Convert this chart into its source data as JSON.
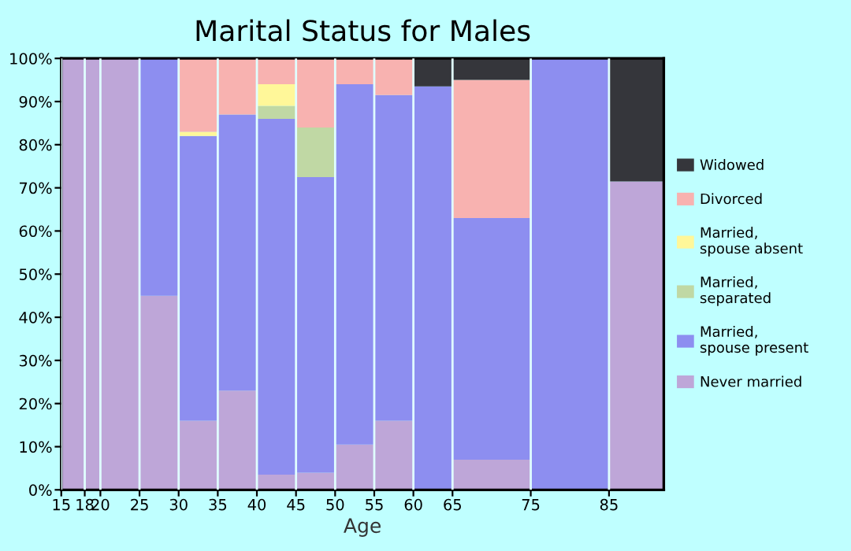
{
  "chart_data": {
    "type": "bar",
    "stacked": true,
    "title": "Marital Status for Males",
    "xlabel": "Age",
    "x": [
      16.5,
      19,
      22.5,
      27.5,
      32.5,
      37.5,
      42.5,
      47.5,
      52.5,
      57.5,
      62.5,
      70,
      80,
      88.5
    ],
    "series": [
      {
        "name": "Never married",
        "color": "#bea6d8",
        "values": [
          100,
          100,
          100,
          45,
          16,
          23,
          3.5,
          4,
          10.5,
          16,
          0,
          7,
          0,
          71.5
        ]
      },
      {
        "name": "Married, spouse present",
        "color": "#8d8ef0",
        "values": [
          0,
          0,
          0,
          55,
          66,
          64,
          82.5,
          68.5,
          83.5,
          75.5,
          93.5,
          56,
          100,
          0
        ]
      },
      {
        "name": "Married, separated",
        "color": "#c0d8a4",
        "values": [
          0,
          0,
          0,
          0,
          0,
          0,
          3,
          11.5,
          0,
          0,
          0,
          0,
          0,
          0
        ]
      },
      {
        "name": "Married, spouse absent",
        "color": "#fff799",
        "values": [
          0,
          0,
          0,
          0,
          1,
          0,
          5,
          0,
          0,
          0,
          0,
          0,
          0,
          0
        ]
      },
      {
        "name": "Divorced",
        "color": "#f8b2b0",
        "values": [
          0,
          0,
          0,
          0,
          17,
          13,
          6,
          16,
          6,
          8.5,
          0,
          32,
          0,
          0
        ]
      },
      {
        "name": "Widowed",
        "color": "#35363b",
        "values": [
          0,
          0,
          0,
          0,
          0,
          0,
          0,
          0,
          0,
          0,
          6.5,
          5,
          0,
          28.5
        ]
      }
    ],
    "xlim": [
      15,
      92
    ],
    "xticks": [
      15,
      18,
      20,
      25,
      30,
      35,
      40,
      45,
      50,
      55,
      60,
      65,
      75,
      85
    ],
    "ylim": [
      0,
      100
    ],
    "yticks": [
      {
        "value": 0,
        "label": "0%"
      },
      {
        "value": 10,
        "label": "10%"
      },
      {
        "value": 20,
        "label": "20%"
      },
      {
        "value": 30,
        "label": "30%"
      },
      {
        "value": 40,
        "label": "40%"
      },
      {
        "value": 50,
        "label": "50%"
      },
      {
        "value": 60,
        "label": "60%"
      },
      {
        "value": 70,
        "label": "70%"
      },
      {
        "value": 80,
        "label": "80%"
      },
      {
        "value": 90,
        "label": "90%"
      },
      {
        "value": 100,
        "label": "100%"
      }
    ],
    "grid": "x",
    "legend": "right"
  }
}
